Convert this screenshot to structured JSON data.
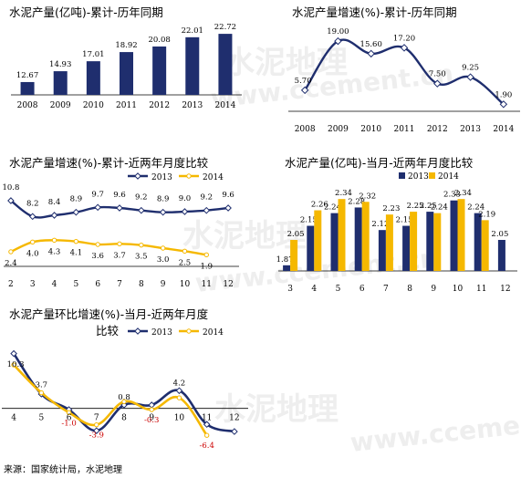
{
  "colors": {
    "navy": "#1F2E6E",
    "gold": "#F5B800",
    "negative": "#CC0000"
  },
  "watermark": {
    "cn": "水泥地理",
    "en": "www.ccement.cn"
  },
  "footer": "来源：国家统计局，水泥地理",
  "chart_data": [
    {
      "id": "cumulative-output",
      "type": "bar",
      "title": "水泥产量(亿吨)-累计-历年同期",
      "categories": [
        "2008",
        "2009",
        "2010",
        "2011",
        "2012",
        "2013",
        "2014"
      ],
      "values": [
        12.67,
        14.93,
        17.01,
        18.92,
        20.08,
        22.01,
        22.72
      ],
      "value_labels": [
        "12.67",
        "14.93",
        "17.01",
        "18.92",
        "20.08",
        "22.01",
        "22.72"
      ],
      "ylim": [
        10,
        23.5
      ],
      "grid": false
    },
    {
      "id": "cumulative-growth",
      "type": "line",
      "title": "水泥产量增速(%)-累计-历年同期",
      "categories": [
        "2008",
        "2009",
        "2010",
        "2011",
        "2012",
        "2013",
        "2014"
      ],
      "values": [
        5.7,
        19.0,
        15.6,
        17.2,
        7.5,
        9.25,
        1.9
      ],
      "value_labels": [
        "5.70",
        "19.00",
        "15.60",
        "17.20",
        "7.50",
        "9.25",
        "1.90"
      ],
      "ylim": [
        0,
        21
      ],
      "grid": false
    },
    {
      "id": "cumulative-growth-monthly",
      "type": "line",
      "title": "水泥产量增速(%)-累计-近两年月度比较",
      "categories": [
        "2",
        "3",
        "4",
        "5",
        "6",
        "7",
        "8",
        "9",
        "10",
        "11",
        "12"
      ],
      "series": [
        {
          "name": "2013",
          "values": [
            10.8,
            8.2,
            8.4,
            8.9,
            9.7,
            9.6,
            9.2,
            8.9,
            9.0,
            9.2,
            9.6
          ],
          "value_labels": [
            "10.8",
            "8.2",
            "8.4",
            "8.9",
            "9.7",
            "9.6",
            "9.2",
            "8.9",
            "9.0",
            "9.2",
            "9.6"
          ]
        },
        {
          "name": "2014",
          "values": [
            2.4,
            4.0,
            4.3,
            4.1,
            3.6,
            3.7,
            3.5,
            3.0,
            2.5,
            1.9,
            null
          ],
          "value_labels": [
            "2.4",
            "4.0",
            "4.3",
            "4.1",
            "3.6",
            "3.7",
            "3.5",
            "3.0",
            "2.5",
            "1.9",
            ""
          ]
        }
      ],
      "ylim": [
        0,
        12
      ],
      "legend": "top"
    },
    {
      "id": "monthly-output",
      "type": "bar",
      "title": "水泥产量(亿吨)-当月-近两年月度比较",
      "categories": [
        "3",
        "4",
        "5",
        "6",
        "7",
        "8",
        "9",
        "10",
        "11",
        "12"
      ],
      "series": [
        {
          "name": "2013",
          "values": [
            1.87,
            2.15,
            2.24,
            2.28,
            2.12,
            2.15,
            2.25,
            2.33,
            2.24,
            2.05
          ],
          "value_labels": [
            "1.87",
            "2.15",
            "2.24",
            "2.28",
            "2.12",
            "2.15",
            "2.25",
            "2.33",
            "2.24",
            "2.05"
          ]
        },
        {
          "name": "2014",
          "values": [
            2.05,
            2.26,
            2.34,
            2.32,
            2.23,
            2.25,
            2.24,
            2.34,
            2.19,
            null
          ],
          "value_labels": [
            "2.05",
            "2.26",
            "2.34",
            "2.32",
            "2.23",
            "2.25",
            "2.24",
            "2.34",
            "2.19",
            ""
          ]
        }
      ],
      "ylim": [
        1.83,
        2.38
      ],
      "legend": "top"
    },
    {
      "id": "mom-growth",
      "type": "line",
      "title": "水泥产量环比增速(%)-当月-近两年月度",
      "title2": "比较",
      "categories": [
        "4",
        "5",
        "6",
        "7",
        "8",
        "9",
        "10",
        "11",
        "12"
      ],
      "series": [
        {
          "name": "2013",
          "values": [
            13.0,
            3.4,
            -0.3,
            -5.3,
            0.8,
            0.8,
            4.2,
            -3.8,
            -5.5
          ],
          "value_labels": [
            "",
            "",
            "",
            "",
            "0.8",
            "",
            "4.2",
            "",
            ""
          ]
        },
        {
          "name": "2014",
          "values": [
            10.3,
            3.7,
            -1.0,
            -3.9,
            1.6,
            -0.3,
            2.5,
            -6.4,
            null
          ],
          "value_labels": [
            "10.3",
            "3.7",
            "-1.0",
            "-3.9",
            "",
            "-0.3",
            "",
            "-6.4",
            ""
          ]
        }
      ],
      "ylim": [
        -7,
        14
      ],
      "legend": "top"
    }
  ]
}
